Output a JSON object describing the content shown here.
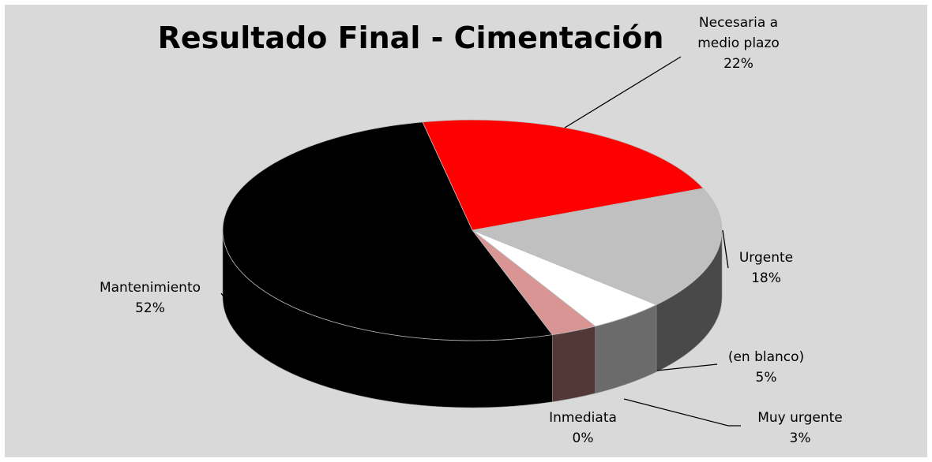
{
  "chart_data": {
    "type": "pie",
    "title": "Resultado Final - Cimentación",
    "categories": [
      "Necesaria a medio plazo",
      "Urgente",
      "(en blanco)",
      "Muy urgente",
      "Inmediata",
      "Mantenimiento"
    ],
    "values": [
      22,
      18,
      5,
      3,
      0,
      52
    ],
    "value_labels": [
      "22%",
      "18%",
      "5%",
      "3%",
      "0%",
      "52%"
    ],
    "colors": [
      "#ff0000",
      "#c0c0c0",
      "#ffffff",
      "#d99594",
      "#f4b183",
      "#000000"
    ]
  }
}
